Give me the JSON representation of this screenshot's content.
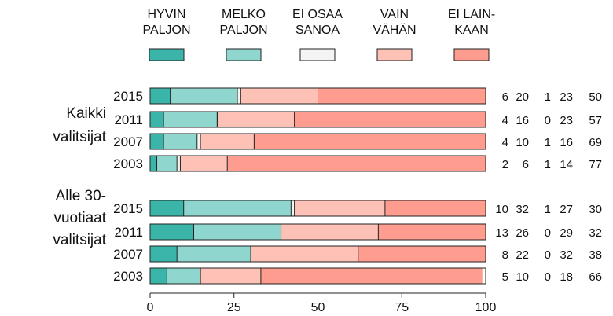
{
  "chart_data": {
    "type": "bar",
    "orientation": "horizontal",
    "stacked": true,
    "xlim": [
      0,
      100
    ],
    "xticks": [
      0,
      25,
      50,
      75,
      100
    ],
    "legend_position": "top",
    "categories_legend": [
      {
        "lines": [
          "HYVIN",
          "PALJON"
        ],
        "color": "#3bb5a9"
      },
      {
        "lines": [
          "MELKO",
          "PALJON"
        ],
        "color": "#8fd6ce"
      },
      {
        "lines": [
          "EI OSAA",
          "SANOA"
        ],
        "color": "#f4f4f4"
      },
      {
        "lines": [
          "VAIN",
          "VÄHÄN"
        ],
        "color": "#fdc2b5"
      },
      {
        "lines": [
          "EI LAIN-",
          "KAAN"
        ],
        "color": "#fd9c8f"
      }
    ],
    "groups": [
      {
        "label_lines": [
          "Kaikki",
          "valitsijat"
        ],
        "rows": [
          {
            "year": "2015",
            "values": [
              6,
              20,
              1,
              23,
              50
            ]
          },
          {
            "year": "2011",
            "values": [
              4,
              16,
              0,
              23,
              57
            ]
          },
          {
            "year": "2007",
            "values": [
              4,
              10,
              1,
              16,
              69
            ]
          },
          {
            "year": "2003",
            "values": [
              2,
              6,
              1,
              14,
              77
            ]
          }
        ]
      },
      {
        "label_lines": [
          "Alle 30-",
          "vuotiaat",
          "valitsijat"
        ],
        "rows": [
          {
            "year": "2015",
            "values": [
              10,
              32,
              1,
              27,
              30
            ]
          },
          {
            "year": "2011",
            "values": [
              13,
              26,
              0,
              29,
              32
            ]
          },
          {
            "year": "2007",
            "values": [
              8,
              22,
              0,
              32,
              38
            ]
          },
          {
            "year": "2003",
            "values": [
              5,
              10,
              0,
              18,
              66
            ]
          }
        ]
      }
    ]
  }
}
